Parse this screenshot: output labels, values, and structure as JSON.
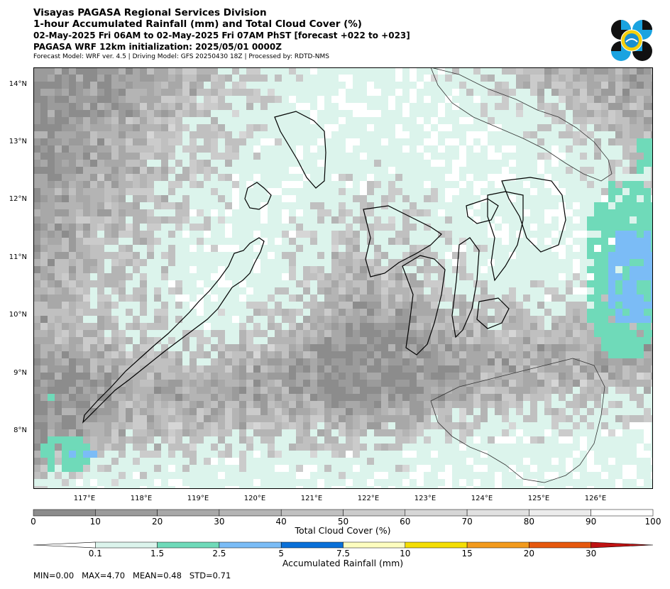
{
  "header": {
    "line1": "Visayas PAGASA Regional Services Division",
    "line2": "1-hour Accumulated Rainfall (mm) and Total Cloud Cover (%)",
    "line3": "02-May-2025 Fri 06AM to 02-May-2025 Fri 07AM PhST [forecast +022 to +023]",
    "line4": "PAGASA WRF 12km initialization: 2025/05/01 0000Z",
    "line5": "Forecast Model: WRF ver. 4.5 | Driving Model: GFS 20250430 18Z | Processed by: RDTD-NMS"
  },
  "map": {
    "lat_labels": [
      "14°N",
      "13°N",
      "12°N",
      "11°N",
      "10°N",
      "9°N",
      "8°N"
    ],
    "lon_labels": [
      "117°E",
      "118°E",
      "119°E",
      "120°E",
      "121°E",
      "122°E",
      "123°E",
      "124°E",
      "125°E",
      "126°E"
    ]
  },
  "cloud_cover_bar": {
    "title": "Total Cloud Cover (%)",
    "ticks": [
      "0",
      "10",
      "20",
      "30",
      "40",
      "50",
      "60",
      "70",
      "80",
      "90",
      "100"
    ],
    "colors": [
      "#8c8c8c",
      "#9b9b9b",
      "#a8a8a8",
      "#b4b4b4",
      "#c0c0c0",
      "#cbcbcb",
      "#d6d6d6",
      "#e1e1e1",
      "#ececec",
      "#ffffff"
    ]
  },
  "rainfall_bar": {
    "title": "Accumulated Rainfall (mm)",
    "ticks": [
      "0.1",
      "1.5",
      "2.5",
      "5",
      "7.5",
      "10",
      "15",
      "20",
      "30"
    ],
    "colors": [
      "#dcf4ec",
      "#6fdab9",
      "#7bbcf6",
      "#0a70d8",
      "#fdfdbf",
      "#f4de05",
      "#f29a1d",
      "#e6580e",
      "#bf1212"
    ]
  },
  "stats": "MIN=0.00   MAX=4.70   MEAN=0.48   STD=0.71"
}
